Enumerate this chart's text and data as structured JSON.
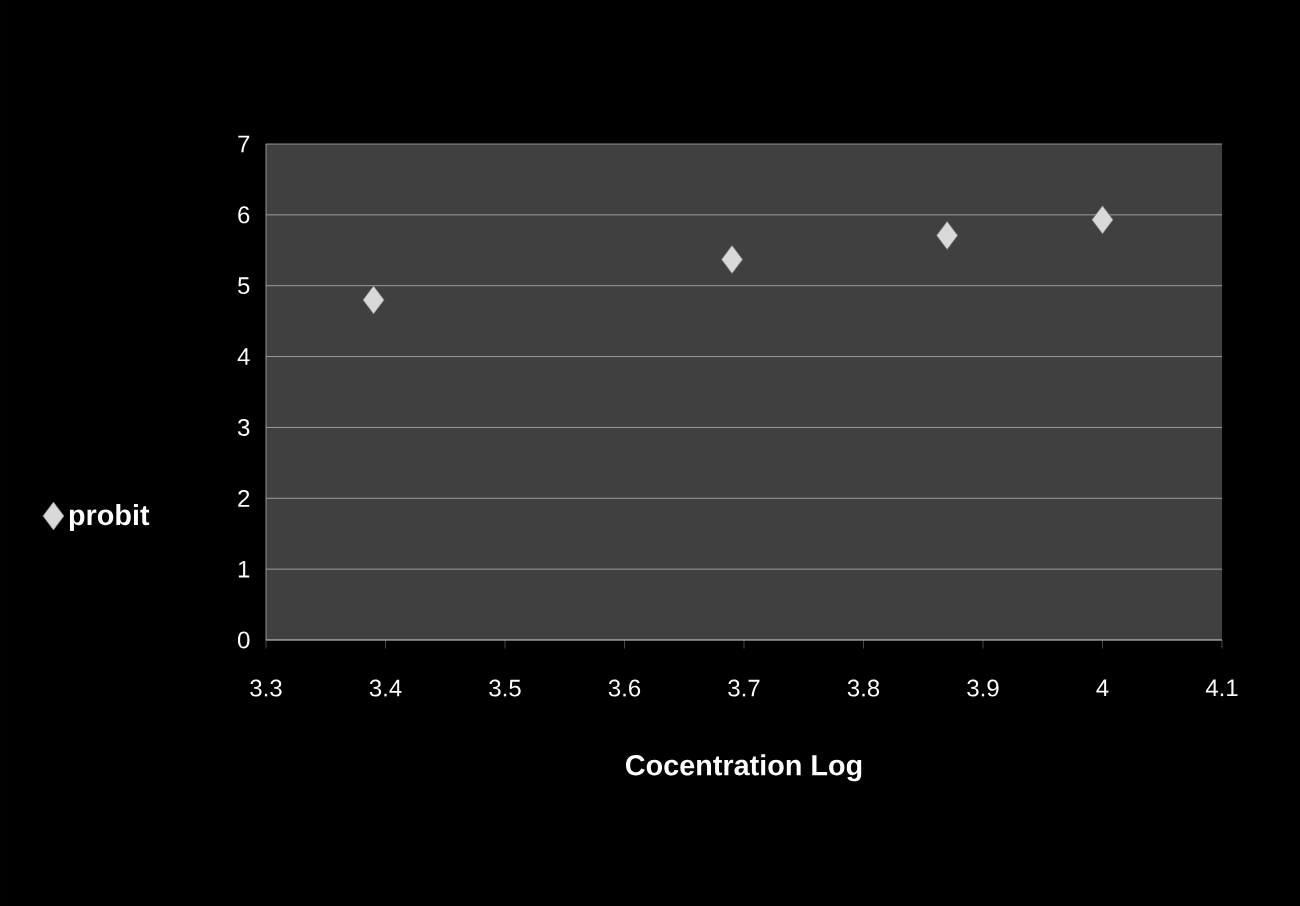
{
  "chart_data": {
    "type": "scatter",
    "xlabel": "Cocentration Log",
    "x": [
      3.39,
      3.69,
      3.87,
      4.0
    ],
    "series": [
      {
        "name": "probit",
        "color": "#d9d9d9",
        "values": [
          4.8,
          5.37,
          5.71,
          5.93
        ]
      }
    ],
    "xlim": [
      3.3,
      4.1
    ],
    "xticks": [
      3.3,
      3.4,
      3.5,
      3.6,
      3.7,
      3.8,
      3.9,
      {
        "value": 4.0,
        "label": "4"
      },
      4.1
    ],
    "ylim": [
      0,
      7
    ],
    "yticks": [
      0,
      1,
      2,
      3,
      4,
      5,
      6,
      7
    ],
    "grid": "y",
    "legend": "left",
    "marker": "diamond"
  }
}
